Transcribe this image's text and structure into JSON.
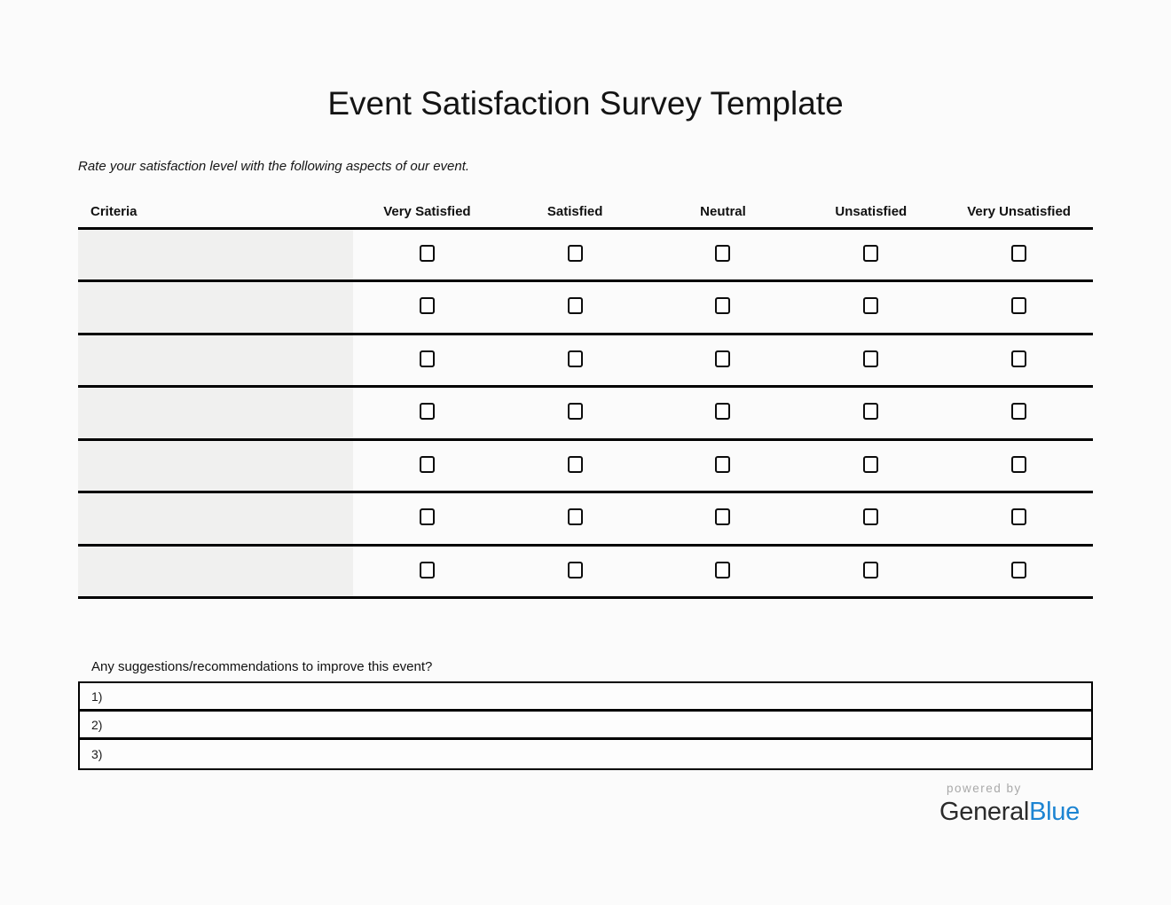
{
  "page": {
    "title": "Event Satisfaction Survey Template",
    "instruction": "Rate your satisfaction level with the following aspects of our event."
  },
  "table": {
    "headers": [
      "Criteria",
      "Very Satisfied",
      "Satisfied",
      "Neutral",
      "Unsatisfied",
      "Very Unsatisfied"
    ],
    "row_count": 7,
    "criteria_values": [
      "",
      "",
      "",
      "",
      "",
      "",
      ""
    ],
    "checkbox_state": "unchecked"
  },
  "icons": {
    "checkbox": "☐ empty-checkbox (css square outline)"
  },
  "suggestions": {
    "prompt": "Any suggestions/recommendations to improve this event?",
    "labels": [
      "1)",
      "2)",
      "3)"
    ],
    "values": [
      "",
      "",
      ""
    ]
  },
  "footer": {
    "powered_by": "powered by",
    "brand_general": "General",
    "brand_blue": "Blue"
  },
  "colors": {
    "page_bg": "#fbfbfb",
    "criteria_cell_bg": "#f0f0ef",
    "table_line": "#000000",
    "powered_by_gray": "#a9a9a9",
    "brand_dark": "#2b2b2b",
    "brand_blue": "#1c84d2"
  }
}
